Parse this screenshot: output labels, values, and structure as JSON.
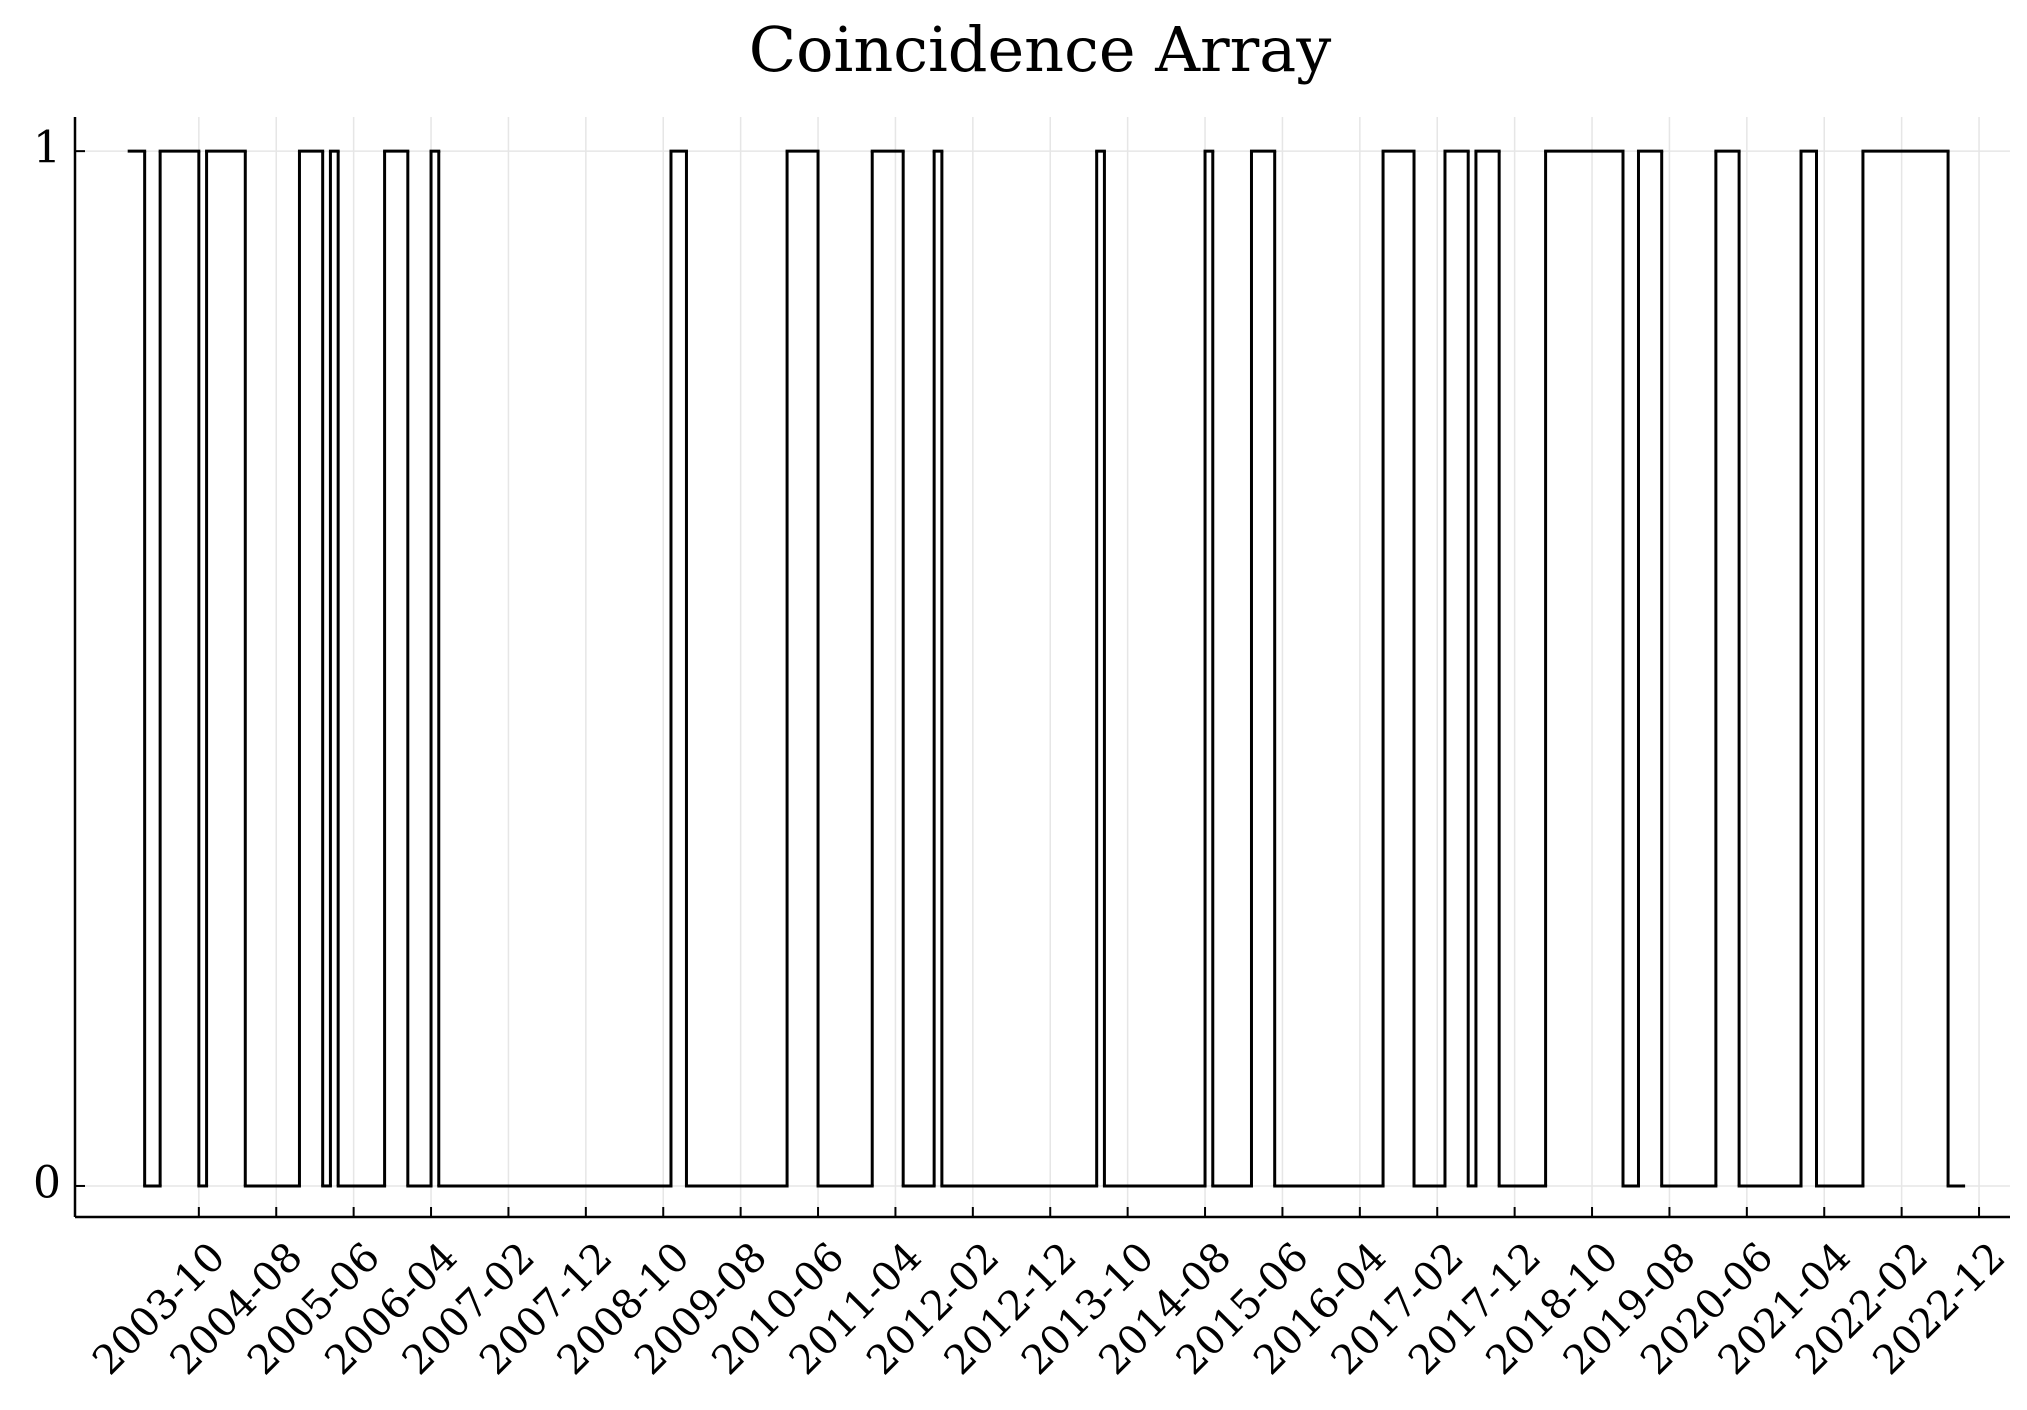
{
  "chart_data": {
    "type": "line",
    "step": "post",
    "title": "Coincidence Array",
    "x": [
      "2003-01",
      "2003-03",
      "2003-05",
      "2003-10",
      "2003-11",
      "2004-04",
      "2004-11",
      "2005-02",
      "2005-03",
      "2005-04",
      "2005-10",
      "2006-01",
      "2006-04",
      "2006-05",
      "2008-11",
      "2009-01",
      "2010-02",
      "2010-06",
      "2011-01",
      "2011-05",
      "2011-09",
      "2011-10",
      "2013-06",
      "2013-07",
      "2014-08",
      "2014-09",
      "2015-02",
      "2015-05",
      "2016-07",
      "2016-11",
      "2017-03",
      "2017-06",
      "2017-07",
      "2017-10",
      "2018-04",
      "2019-02",
      "2019-04",
      "2019-07",
      "2020-02",
      "2020-05",
      "2021-01",
      "2021-03",
      "2021-09",
      "2022-08",
      "2022-10"
    ],
    "values": [
      1,
      0,
      1,
      0,
      1,
      0,
      1,
      0,
      1,
      0,
      1,
      0,
      1,
      0,
      1,
      0,
      1,
      0,
      1,
      0,
      1,
      0,
      1,
      0,
      1,
      0,
      1,
      0,
      1,
      0,
      1,
      0,
      1,
      0,
      1,
      0,
      1,
      0,
      1,
      0,
      1,
      0,
      1,
      0,
      0
    ],
    "color": "#000000",
    "xlim": [
      "2002-06",
      "2023-04"
    ],
    "xticks": [
      "2003-10",
      "2004-08",
      "2005-06",
      "2006-04",
      "2007-02",
      "2007-12",
      "2008-10",
      "2009-08",
      "2010-06",
      "2011-04",
      "2012-02",
      "2012-12",
      "2013-10",
      "2014-08",
      "2015-06",
      "2016-04",
      "2017-02",
      "2017-12",
      "2018-10",
      "2019-08",
      "2020-06",
      "2021-04",
      "2022-02",
      "2022-12"
    ],
    "ylim": [
      -0.03,
      1.033
    ],
    "yticks": [
      0,
      1
    ],
    "grid": true
  }
}
